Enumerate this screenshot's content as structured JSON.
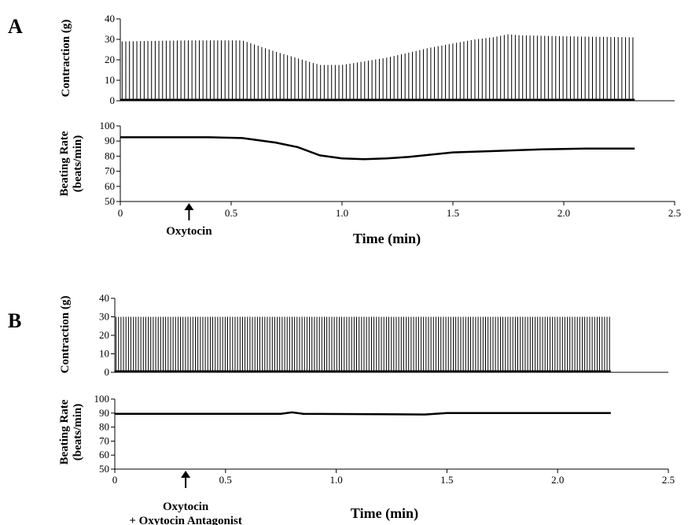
{
  "chart_data": [
    {
      "panel": "A",
      "type": "line",
      "xlabel": "Time (min)",
      "xlim": [
        0,
        2.5
      ],
      "xticks": [
        "0",
        "0.5",
        "1.0",
        "1.5",
        "2.0",
        "2.5"
      ],
      "annotation": {
        "x": 0.31,
        "lines": [
          "Oxytocin"
        ]
      },
      "contraction": {
        "ylabel": "Contraction (g)",
        "ylim": [
          0,
          40
        ],
        "yticks": [
          "0",
          "10",
          "20",
          "30",
          "40"
        ],
        "recording_end": 2.32,
        "beat_count": 140,
        "envelope": [
          [
            0,
            29
          ],
          [
            0.3,
            29.5
          ],
          [
            0.55,
            29.5
          ],
          [
            0.7,
            24
          ],
          [
            0.9,
            17.5
          ],
          [
            1.0,
            17.5
          ],
          [
            1.2,
            21
          ],
          [
            1.4,
            26
          ],
          [
            1.6,
            30
          ],
          [
            1.68,
            31
          ],
          [
            1.75,
            32.5
          ],
          [
            1.8,
            32
          ],
          [
            2.0,
            31.5
          ],
          [
            2.32,
            31
          ]
        ]
      },
      "beating_rate": {
        "ylabel": [
          "Beating Rate",
          "(beats/min)"
        ],
        "ylim": [
          50,
          100
        ],
        "yticks": [
          "50",
          "60",
          "70",
          "80",
          "90",
          "100"
        ],
        "points": [
          [
            0,
            92.5
          ],
          [
            0.4,
            92.5
          ],
          [
            0.55,
            92
          ],
          [
            0.7,
            89
          ],
          [
            0.8,
            86
          ],
          [
            0.9,
            80.5
          ],
          [
            1.0,
            78.5
          ],
          [
            1.1,
            78
          ],
          [
            1.2,
            78.5
          ],
          [
            1.3,
            79.5
          ],
          [
            1.4,
            81
          ],
          [
            1.5,
            82.5
          ],
          [
            1.7,
            83.5
          ],
          [
            1.9,
            84.5
          ],
          [
            2.1,
            85
          ],
          [
            2.32,
            85
          ]
        ]
      }
    },
    {
      "panel": "B",
      "type": "line",
      "xlabel": "Time (min)",
      "xlim": [
        0,
        2.5
      ],
      "xticks": [
        "0",
        "0.5",
        "1.0",
        "1.5",
        "2.0",
        "2.5"
      ],
      "annotation": {
        "x": 0.32,
        "lines": [
          "Oxytocin",
          "+ Oxytocin Antagonist"
        ]
      },
      "contraction": {
        "ylabel": "Contraction (g)",
        "ylim": [
          0,
          40
        ],
        "yticks": [
          "0",
          "10",
          "20",
          "30",
          "40"
        ],
        "recording_end": 2.24,
        "beat_count": 200,
        "envelope": [
          [
            0,
            30
          ],
          [
            2.24,
            30
          ]
        ]
      },
      "beating_rate": {
        "ylabel": [
          "Beating Rate",
          "(beats/min)"
        ],
        "ylim": [
          50,
          100
        ],
        "yticks": [
          "50",
          "60",
          "70",
          "80",
          "90",
          "100"
        ],
        "points": [
          [
            0,
            89.5
          ],
          [
            0.75,
            89.5
          ],
          [
            0.8,
            90.5
          ],
          [
            0.85,
            89.5
          ],
          [
            1.4,
            89
          ],
          [
            1.5,
            90
          ],
          [
            2.24,
            90
          ]
        ]
      }
    }
  ]
}
